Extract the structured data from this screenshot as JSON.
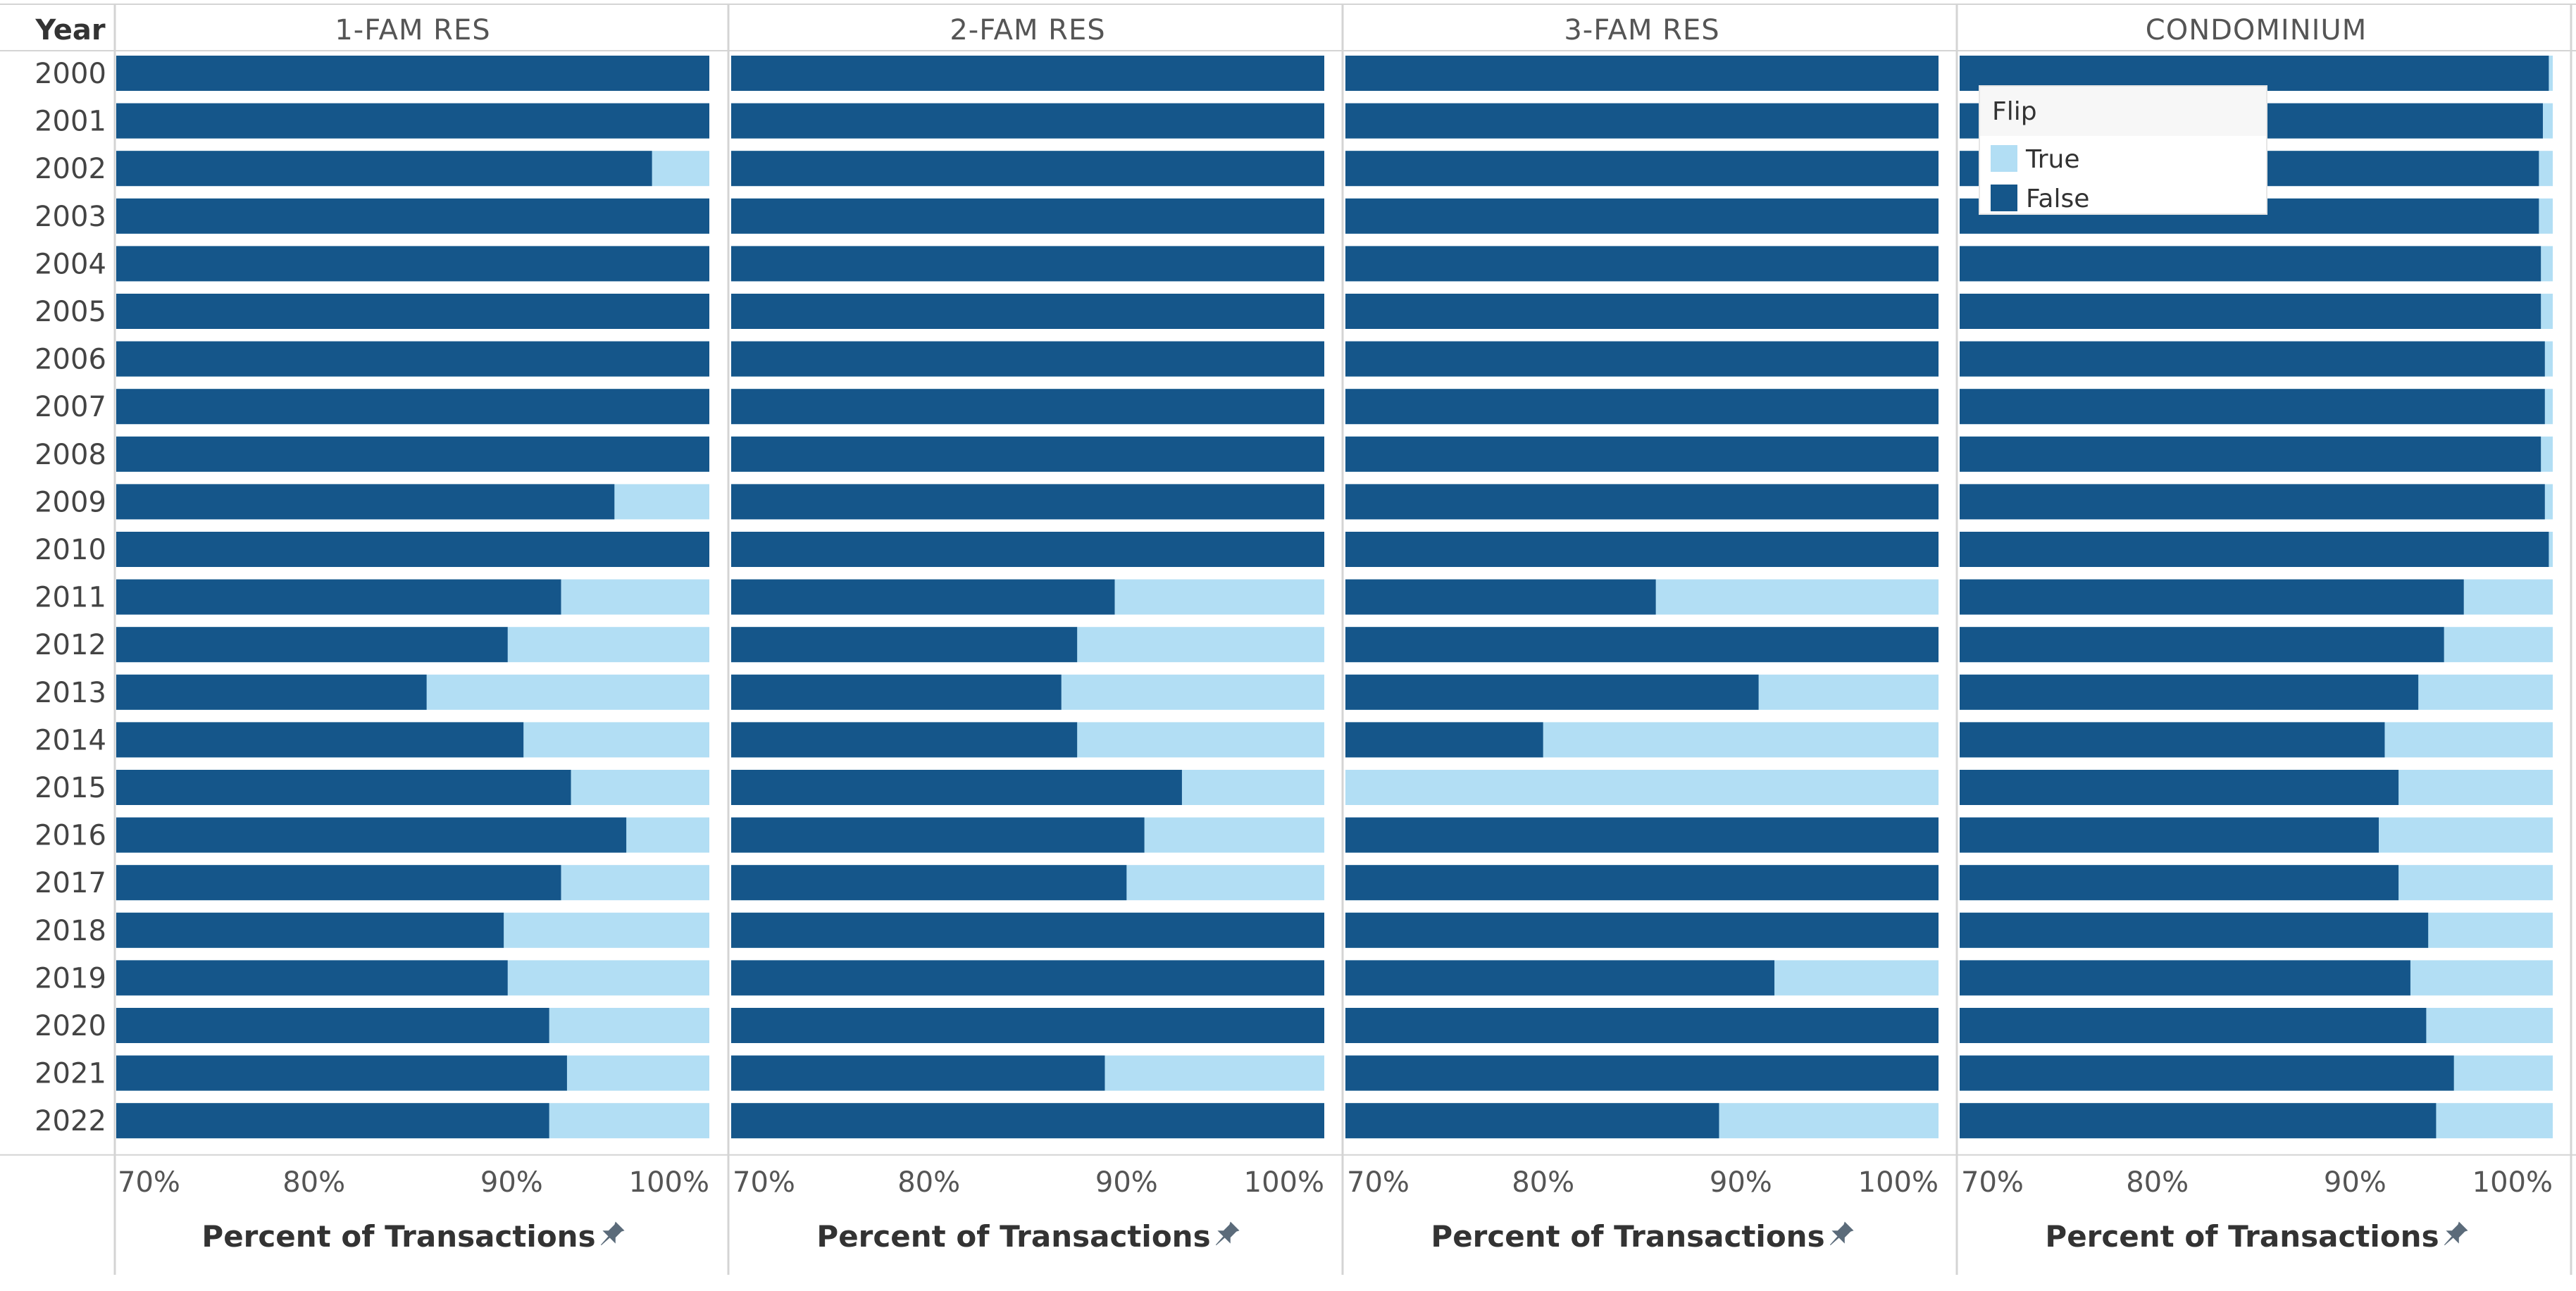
{
  "chart_data": {
    "type": "bar",
    "orientation": "horizontal",
    "stacked": true,
    "row_header": "Year",
    "years": [
      "2000",
      "2001",
      "2002",
      "2003",
      "2004",
      "2005",
      "2006",
      "2007",
      "2008",
      "2009",
      "2010",
      "2011",
      "2012",
      "2013",
      "2014",
      "2015",
      "2016",
      "2017",
      "2018",
      "2019",
      "2020",
      "2021",
      "2022"
    ],
    "xlabel": "Percent of Transactions",
    "xlim": [
      0.7,
      1.0
    ],
    "x_ticks": [
      "70%",
      "80%",
      "90%",
      "100%"
    ],
    "x_tick_values": [
      0.7,
      0.8,
      0.9,
      1.0
    ],
    "legend": {
      "title": "Flip",
      "placement": "top-right",
      "entries": [
        {
          "label": "True",
          "color": "#b2def4"
        },
        {
          "label": "False",
          "color": "#15568a"
        }
      ]
    },
    "colors": {
      "false": "#15568a",
      "true": "#b2def4"
    },
    "panels": [
      {
        "name": "1-FAM RES",
        "false_share": [
          1.0,
          1.0,
          0.971,
          1.0,
          1.0,
          1.0,
          1.0,
          1.0,
          1.0,
          0.952,
          1.0,
          0.925,
          0.898,
          0.857,
          0.906,
          0.93,
          0.958,
          0.925,
          0.896,
          0.898,
          0.919,
          0.928,
          0.919
        ]
      },
      {
        "name": "2-FAM RES",
        "false_share": [
          1.0,
          1.0,
          1.0,
          1.0,
          1.0,
          1.0,
          1.0,
          1.0,
          1.0,
          1.0,
          1.0,
          0.894,
          0.875,
          0.867,
          0.875,
          0.928,
          0.909,
          0.9,
          1.0,
          1.0,
          1.0,
          0.889,
          1.0
        ]
      },
      {
        "name": "3-FAM RES",
        "false_share": [
          1.0,
          1.0,
          1.0,
          1.0,
          1.0,
          1.0,
          1.0,
          1.0,
          1.0,
          1.0,
          1.0,
          0.857,
          1.0,
          0.909,
          0.8,
          0.0,
          1.0,
          1.0,
          1.0,
          0.917,
          1.0,
          1.0,
          0.889
        ]
      },
      {
        "name": "CONDOMINIUM",
        "false_share": [
          0.998,
          0.995,
          0.993,
          0.993,
          0.994,
          0.994,
          0.996,
          0.996,
          0.994,
          0.996,
          0.998,
          0.955,
          0.945,
          0.932,
          0.915,
          0.922,
          0.912,
          0.922,
          0.937,
          0.928,
          0.936,
          0.95,
          0.941
        ]
      }
    ]
  }
}
